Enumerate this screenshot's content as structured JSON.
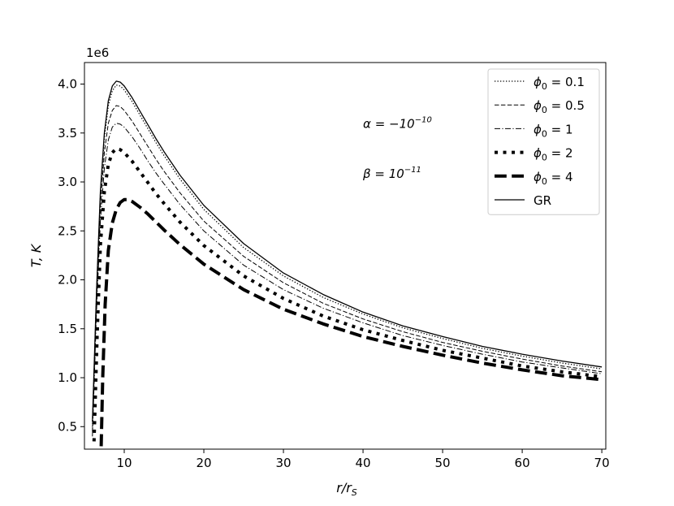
{
  "chart_data": {
    "type": "line",
    "xlabel": "r/r_S",
    "ylabel": "T, K",
    "offset_text": "1e6",
    "xlim": [
      5,
      70.5
    ],
    "ylim": [
      0.27,
      4.22
    ],
    "xticks": [
      10,
      20,
      30,
      40,
      50,
      60,
      70
    ],
    "yticks": [
      0.5,
      1.0,
      1.5,
      2.0,
      2.5,
      3.0,
      3.5,
      4.0
    ],
    "xtick_labels": [
      "10",
      "20",
      "30",
      "40",
      "50",
      "60",
      "70"
    ],
    "ytick_labels": [
      "0.5",
      "1.0",
      "1.5",
      "2.0",
      "2.5",
      "3.0",
      "3.5",
      "4.0"
    ],
    "grid": false,
    "legend_position": "upper right",
    "annotations": [
      {
        "id": "alpha",
        "text": "α = −10",
        "sup": "−10",
        "x": 40,
        "y": 3.55
      },
      {
        "id": "beta",
        "text": "β = 10",
        "sup": "−11",
        "x": 40,
        "y": 3.04
      }
    ],
    "series": [
      {
        "name": "ϕ₀ = 0.1",
        "legend_main": "ϕ",
        "legend_sub": "0",
        "legend_rest": " = 0.1",
        "style": "dotted",
        "width": 1.3,
        "x": [
          6,
          6.5,
          7,
          7.5,
          8,
          8.5,
          9,
          9.5,
          10,
          11,
          12,
          13,
          14,
          15,
          17,
          20,
          25,
          30,
          35,
          40,
          45,
          50,
          55,
          60,
          65,
          70
        ],
        "y": [
          0.5,
          1.8,
          2.85,
          3.45,
          3.78,
          3.93,
          3.99,
          3.98,
          3.94,
          3.82,
          3.68,
          3.54,
          3.4,
          3.27,
          3.03,
          2.72,
          2.33,
          2.04,
          1.82,
          1.65,
          1.51,
          1.4,
          1.3,
          1.22,
          1.15,
          1.09
        ]
      },
      {
        "name": "ϕ₀ = 0.5",
        "legend_main": "ϕ",
        "legend_sub": "0",
        "legend_rest": " = 0.5",
        "style": "dashed",
        "width": 1.0,
        "x": [
          6,
          6.5,
          7,
          7.5,
          8,
          8.5,
          9,
          9.5,
          10,
          11,
          12,
          13,
          14,
          15,
          17,
          20,
          25,
          30,
          35,
          40,
          45,
          50,
          55,
          60,
          65,
          70
        ],
        "y": [
          0.45,
          1.75,
          2.75,
          3.3,
          3.6,
          3.73,
          3.78,
          3.77,
          3.73,
          3.62,
          3.49,
          3.36,
          3.23,
          3.11,
          2.89,
          2.6,
          2.24,
          1.97,
          1.76,
          1.6,
          1.47,
          1.36,
          1.27,
          1.19,
          1.12,
          1.06
        ]
      },
      {
        "name": "ϕ₀ = 1",
        "legend_main": "ϕ",
        "legend_sub": "0",
        "legend_rest": " = 1",
        "style": "dashdot",
        "width": 1.0,
        "x": [
          6,
          6.5,
          7,
          7.5,
          8,
          8.5,
          9,
          9.5,
          10,
          11,
          12,
          13,
          14,
          15,
          17,
          20,
          25,
          30,
          35,
          40,
          45,
          50,
          55,
          60,
          65,
          70
        ],
        "y": [
          0.4,
          1.65,
          2.6,
          3.14,
          3.43,
          3.56,
          3.6,
          3.59,
          3.56,
          3.46,
          3.34,
          3.21,
          3.09,
          2.98,
          2.77,
          2.5,
          2.15,
          1.9,
          1.71,
          1.56,
          1.43,
          1.33,
          1.24,
          1.16,
          1.1,
          1.04
        ]
      },
      {
        "name": "ϕ₀ = 2",
        "legend_main": "ϕ",
        "legend_sub": "0",
        "legend_rest": " = 2",
        "style": "thick-dotted",
        "width": 4.0,
        "x": [
          6.2,
          6.6,
          7,
          7.5,
          8,
          8.5,
          9,
          9.5,
          10,
          11,
          12,
          13,
          14,
          15,
          17,
          20,
          25,
          30,
          35,
          40,
          45,
          50,
          55,
          60,
          65,
          70
        ],
        "y": [
          0.35,
          1.45,
          2.35,
          2.9,
          3.18,
          3.3,
          3.34,
          3.33,
          3.3,
          3.21,
          3.1,
          2.99,
          2.88,
          2.78,
          2.59,
          2.35,
          2.04,
          1.81,
          1.63,
          1.49,
          1.38,
          1.28,
          1.2,
          1.12,
          1.06,
          1.01
        ]
      },
      {
        "name": "ϕ₀ = 4",
        "legend_main": "ϕ",
        "legend_sub": "0",
        "legend_rest": " = 4",
        "style": "thick-dashed",
        "width": 4.0,
        "x": [
          7.1,
          7.3,
          7.6,
          8,
          8.5,
          9,
          9.5,
          10,
          10.5,
          11,
          12,
          13,
          14,
          15,
          17,
          20,
          25,
          30,
          35,
          40,
          45,
          50,
          55,
          60,
          65,
          70
        ],
        "y": [
          0.3,
          1.0,
          1.75,
          2.3,
          2.58,
          2.72,
          2.79,
          2.82,
          2.82,
          2.8,
          2.74,
          2.67,
          2.59,
          2.51,
          2.36,
          2.16,
          1.9,
          1.7,
          1.55,
          1.42,
          1.32,
          1.23,
          1.15,
          1.08,
          1.02,
          0.98
        ]
      },
      {
        "name": "GR",
        "legend_main": "GR",
        "legend_sub": "",
        "legend_rest": "",
        "style": "solid",
        "width": 1.3,
        "x": [
          6,
          6.5,
          7,
          7.5,
          8,
          8.5,
          9,
          9.5,
          10,
          11,
          12,
          13,
          14,
          15,
          17,
          20,
          25,
          30,
          35,
          40,
          45,
          50,
          55,
          60,
          65,
          70
        ],
        "y": [
          0.55,
          1.85,
          2.9,
          3.5,
          3.83,
          3.98,
          4.03,
          4.02,
          3.98,
          3.86,
          3.72,
          3.58,
          3.44,
          3.31,
          3.07,
          2.76,
          2.37,
          2.07,
          1.85,
          1.67,
          1.53,
          1.42,
          1.32,
          1.24,
          1.17,
          1.11
        ]
      }
    ]
  }
}
